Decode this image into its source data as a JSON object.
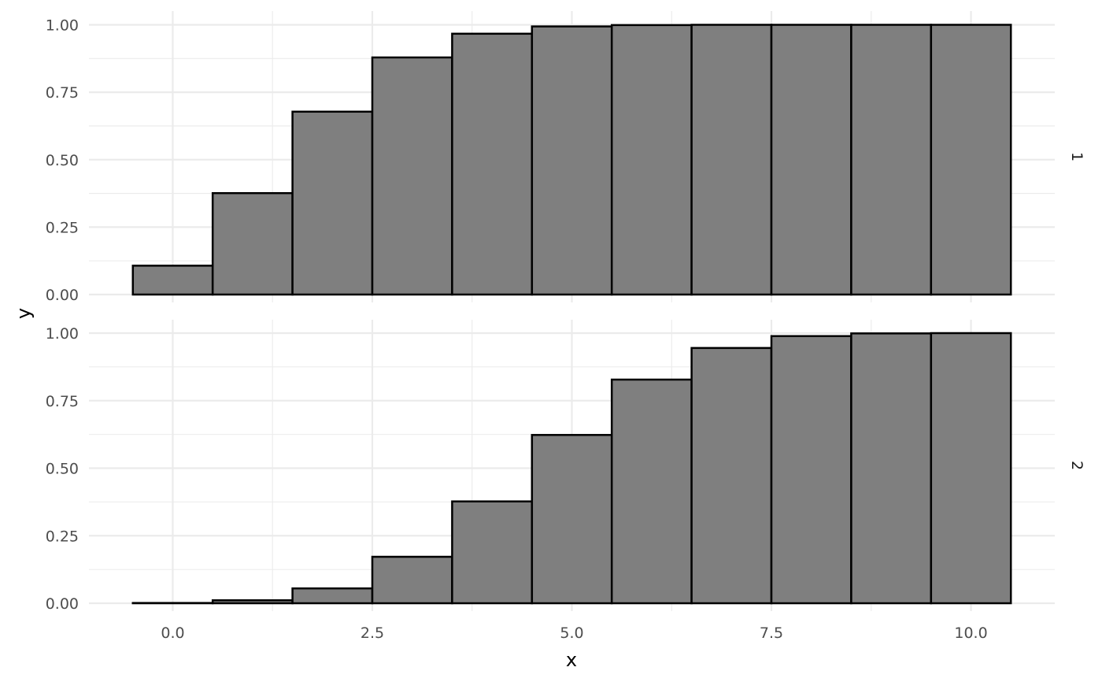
{
  "chart_data": {
    "type": "bar",
    "xlabel": "x",
    "ylabel": "y",
    "xlim": [
      -1.05,
      11.05
    ],
    "ylim": [
      0,
      1
    ],
    "x_ticks": [
      0,
      2.5,
      5,
      7.5,
      10
    ],
    "x_tick_labels": [
      "0.0",
      "2.5",
      "5.0",
      "7.5",
      "10.0"
    ],
    "y_ticks": [
      0,
      0.25,
      0.5,
      0.75,
      1
    ],
    "y_tick_labels": [
      "0.00",
      "0.25",
      "0.50",
      "0.75",
      "1.00"
    ],
    "bar_color": "#7f7f7f",
    "bar_outline": "#000000",
    "bin_width": 1,
    "grid": true,
    "facet": "rows",
    "x": [
      0,
      1,
      2,
      3,
      4,
      5,
      6,
      7,
      8,
      9,
      10
    ],
    "panels": [
      {
        "strip": "1",
        "values": [
          0.107,
          0.376,
          0.678,
          0.879,
          0.967,
          0.994,
          0.999,
          1.0,
          1.0,
          1.0,
          1.0
        ]
      },
      {
        "strip": "2",
        "values": [
          0.001,
          0.011,
          0.055,
          0.172,
          0.377,
          0.623,
          0.828,
          0.945,
          0.989,
          0.999,
          1.0
        ]
      }
    ]
  }
}
